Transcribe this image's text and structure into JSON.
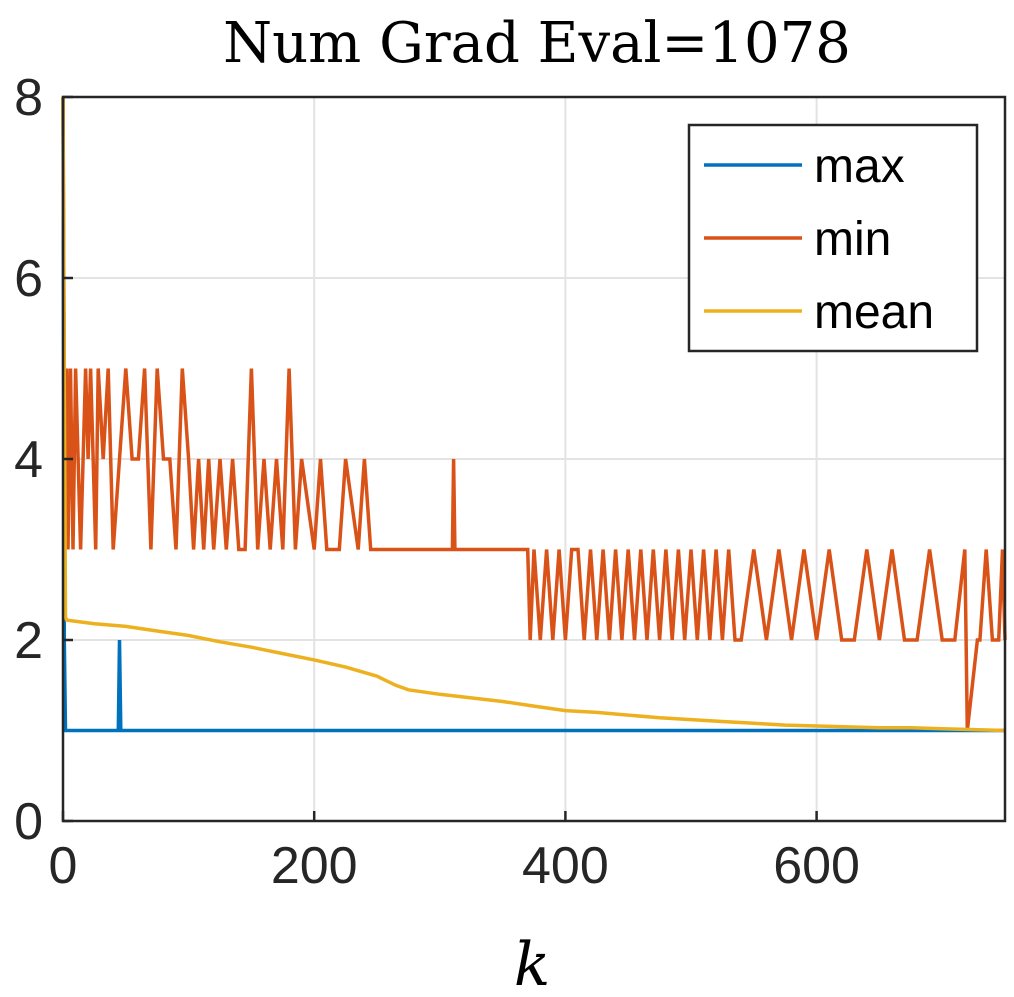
{
  "chart_data": {
    "type": "line",
    "title": "Num Grad Eval=1078",
    "xlabel": "k",
    "ylabel": "",
    "xlim": [
      0,
      750
    ],
    "ylim": [
      0,
      8
    ],
    "xticks": [
      0,
      200,
      400,
      600
    ],
    "yticks": [
      0,
      2,
      4,
      6,
      8
    ],
    "grid": true,
    "legend_position": "top-right",
    "series": [
      {
        "name": "max",
        "color": "#0072BD",
        "x": [
          0,
          1,
          2,
          44,
          45,
          46,
          750
        ],
        "y": [
          8,
          2,
          1,
          1,
          2,
          1,
          1
        ]
      },
      {
        "name": "min",
        "color": "#D95319",
        "x": [
          0,
          1,
          2,
          3,
          4,
          6,
          8,
          10,
          14,
          18,
          20,
          22,
          26,
          28,
          32,
          36,
          40,
          45,
          50,
          55,
          60,
          65,
          70,
          75,
          80,
          85,
          90,
          95,
          100,
          104,
          108,
          112,
          116,
          120,
          125,
          130,
          135,
          140,
          145,
          150,
          155,
          160,
          165,
          170,
          175,
          180,
          185,
          190,
          200,
          205,
          210,
          220,
          225,
          235,
          240,
          245,
          310,
          311,
          312,
          370,
          372,
          375,
          380,
          385,
          390,
          395,
          400,
          405,
          410,
          415,
          420,
          425,
          430,
          435,
          440,
          445,
          450,
          455,
          460,
          465,
          470,
          475,
          480,
          485,
          490,
          495,
          500,
          505,
          510,
          515,
          520,
          525,
          530,
          535,
          540,
          550,
          560,
          570,
          580,
          590,
          600,
          610,
          620,
          630,
          640,
          650,
          660,
          670,
          680,
          690,
          700,
          710,
          718,
          719,
          720,
          728,
          730,
          735,
          740,
          745,
          748,
          750
        ],
        "y": [
          8,
          5,
          4,
          5,
          3,
          5,
          3,
          5,
          3,
          5,
          4,
          5,
          3,
          5,
          4,
          5,
          3,
          4,
          5,
          4,
          4,
          5,
          3,
          5,
          4,
          4,
          3,
          5,
          4,
          3,
          4,
          3,
          4,
          3,
          4,
          3,
          4,
          3,
          3,
          5,
          3,
          4,
          3,
          4,
          3,
          5,
          3,
          4,
          3,
          4,
          3,
          3,
          4,
          3,
          4,
          3,
          3,
          4,
          3,
          3,
          2,
          3,
          2,
          3,
          2,
          3,
          2,
          3,
          3,
          2,
          3,
          2,
          3,
          2,
          3,
          2,
          3,
          2,
          3,
          2,
          3,
          2,
          3,
          2,
          3,
          2,
          3,
          2,
          3,
          2,
          3,
          2,
          3,
          2,
          2,
          3,
          2,
          3,
          2,
          3,
          2,
          3,
          2,
          2,
          3,
          2,
          3,
          2,
          2,
          3,
          2,
          2,
          3,
          2,
          1,
          2,
          2,
          3,
          2,
          2,
          3,
          2
        ]
      },
      {
        "name": "mean",
        "color": "#EDB120",
        "x": [
          0,
          1,
          2,
          3,
          25,
          50,
          75,
          100,
          125,
          150,
          175,
          200,
          225,
          250,
          265,
          275,
          300,
          325,
          350,
          375,
          400,
          425,
          450,
          475,
          500,
          525,
          550,
          575,
          600,
          625,
          650,
          675,
          700,
          725,
          750
        ],
        "y": [
          8,
          4.8,
          2.25,
          2.22,
          2.18,
          2.15,
          2.1,
          2.05,
          1.98,
          1.92,
          1.85,
          1.78,
          1.7,
          1.6,
          1.5,
          1.45,
          1.4,
          1.36,
          1.32,
          1.27,
          1.22,
          1.2,
          1.17,
          1.14,
          1.12,
          1.1,
          1.08,
          1.06,
          1.05,
          1.04,
          1.03,
          1.03,
          1.02,
          1.01,
          1.0
        ]
      }
    ]
  }
}
